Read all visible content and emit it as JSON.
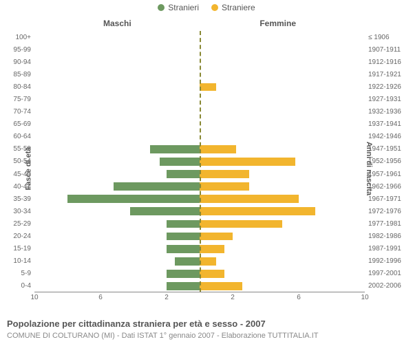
{
  "legend": {
    "male": {
      "label": "Stranieri",
      "color": "#6d9960"
    },
    "female": {
      "label": "Straniere",
      "color": "#f2b52e"
    }
  },
  "chart": {
    "type": "population-pyramid",
    "title_left": "Maschi",
    "title_right": "Femmine",
    "y_label_left": "Fasce di età",
    "y_label_right": "Anni di nascita",
    "x_max": 10,
    "x_ticks_left": [
      10,
      6,
      2
    ],
    "x_ticks_right": [
      2,
      6,
      10
    ],
    "bar_color_male": "#6d9960",
    "bar_color_female": "#f2b52e",
    "background_color": "#ffffff",
    "center_line_color": "#888833",
    "tick_fontsize": 10,
    "label_fontsize": 11,
    "rows": [
      {
        "age": "100+",
        "birth": "≤ 1906",
        "m": 0,
        "f": 0
      },
      {
        "age": "95-99",
        "birth": "1907-1911",
        "m": 0,
        "f": 0
      },
      {
        "age": "90-94",
        "birth": "1912-1916",
        "m": 0,
        "f": 0
      },
      {
        "age": "85-89",
        "birth": "1917-1921",
        "m": 0,
        "f": 0
      },
      {
        "age": "80-84",
        "birth": "1922-1926",
        "m": 0,
        "f": 1
      },
      {
        "age": "75-79",
        "birth": "1927-1931",
        "m": 0,
        "f": 0
      },
      {
        "age": "70-74",
        "birth": "1932-1936",
        "m": 0,
        "f": 0
      },
      {
        "age": "65-69",
        "birth": "1937-1941",
        "m": 0,
        "f": 0
      },
      {
        "age": "60-64",
        "birth": "1942-1946",
        "m": 0,
        "f": 0
      },
      {
        "age": "55-59",
        "birth": "1947-1951",
        "m": 3,
        "f": 2.2
      },
      {
        "age": "50-54",
        "birth": "1952-1956",
        "m": 2.4,
        "f": 5.8
      },
      {
        "age": "45-49",
        "birth": "1957-1961",
        "m": 2,
        "f": 3
      },
      {
        "age": "40-44",
        "birth": "1962-1966",
        "m": 5.2,
        "f": 3
      },
      {
        "age": "35-39",
        "birth": "1967-1971",
        "m": 8,
        "f": 6
      },
      {
        "age": "30-34",
        "birth": "1972-1976",
        "m": 4.2,
        "f": 7
      },
      {
        "age": "25-29",
        "birth": "1977-1981",
        "m": 2,
        "f": 5
      },
      {
        "age": "20-24",
        "birth": "1982-1986",
        "m": 2,
        "f": 2
      },
      {
        "age": "15-19",
        "birth": "1987-1991",
        "m": 2,
        "f": 1.5
      },
      {
        "age": "10-14",
        "birth": "1992-1996",
        "m": 1.5,
        "f": 1
      },
      {
        "age": "5-9",
        "birth": "1997-2001",
        "m": 2,
        "f": 1.5
      },
      {
        "age": "0-4",
        "birth": "2002-2006",
        "m": 2,
        "f": 2.6
      }
    ]
  },
  "caption": "Popolazione per cittadinanza straniera per età e sesso - 2007",
  "subcaption": "COMUNE DI COLTURANO (MI) - Dati ISTAT 1° gennaio 2007 - Elaborazione TUTTITALIA.IT"
}
